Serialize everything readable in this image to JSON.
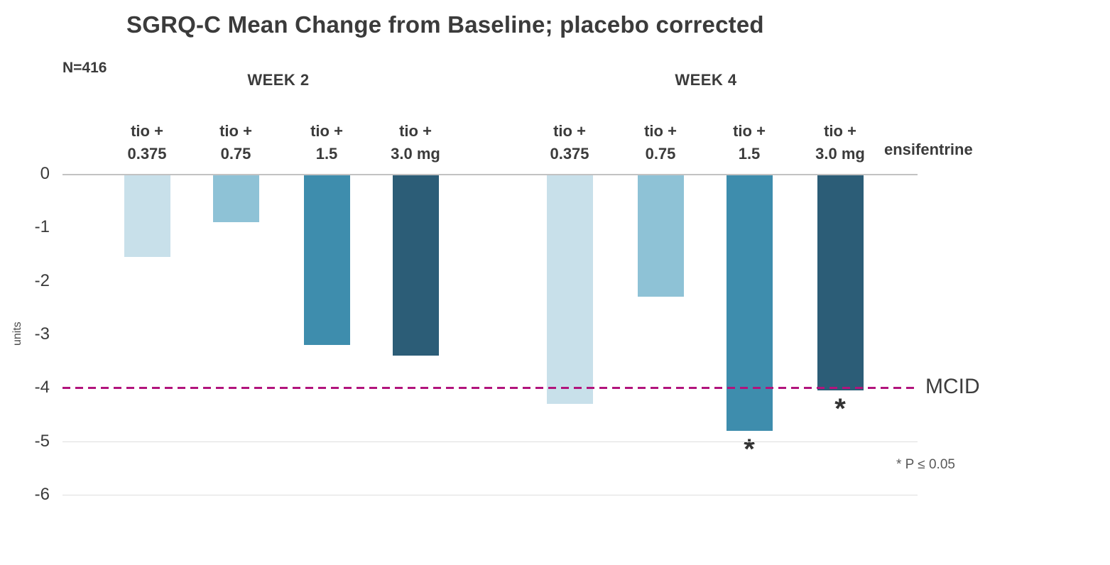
{
  "chart_data": {
    "type": "bar",
    "title": "SGRQ-C Mean Change from Baseline; placebo corrected",
    "n_label": "N=416",
    "ylabel": "units",
    "xlabel": "",
    "ylim": [
      -6,
      0
    ],
    "yticks": [
      0,
      -1,
      -2,
      -3,
      -4,
      -5,
      -6
    ],
    "gridlines": [
      0,
      -5,
      -6
    ],
    "grid": "partial",
    "legend_position": "none",
    "dose_note": "ensifentrine",
    "sig_marker": "*",
    "footnote": "* P ≤ 0.05",
    "mcid": {
      "value": -4,
      "label": "MCID",
      "color": "#b2147c"
    },
    "groups": [
      {
        "label": "WEEK 2",
        "bars": [
          {
            "label_top": "tio +",
            "label_bottom": "0.375",
            "value": -1.55,
            "color": "#c8e0ea",
            "significant": false
          },
          {
            "label_top": "tio +",
            "label_bottom": "0.75",
            "value": -0.9,
            "color": "#8ec2d6",
            "significant": false
          },
          {
            "label_top": "tio +",
            "label_bottom": "1.5",
            "value": -3.2,
            "color": "#3e8dad",
            "significant": false
          },
          {
            "label_top": "tio +",
            "label_bottom": "3.0 mg",
            "value": -3.4,
            "color": "#2c5d77",
            "significant": false
          }
        ]
      },
      {
        "label": "WEEK 4",
        "bars": [
          {
            "label_top": "tio +",
            "label_bottom": "0.375",
            "value": -4.3,
            "color": "#c8e0ea",
            "significant": false
          },
          {
            "label_top": "tio +",
            "label_bottom": "0.75",
            "value": -2.3,
            "color": "#8ec2d6",
            "significant": false
          },
          {
            "label_top": "tio +",
            "label_bottom": "1.5",
            "value": -4.8,
            "color": "#3e8dad",
            "significant": true
          },
          {
            "label_top": "tio +",
            "label_bottom": "3.0 mg",
            "value": -4.05,
            "color": "#2c5d77",
            "significant": true
          }
        ]
      }
    ]
  }
}
